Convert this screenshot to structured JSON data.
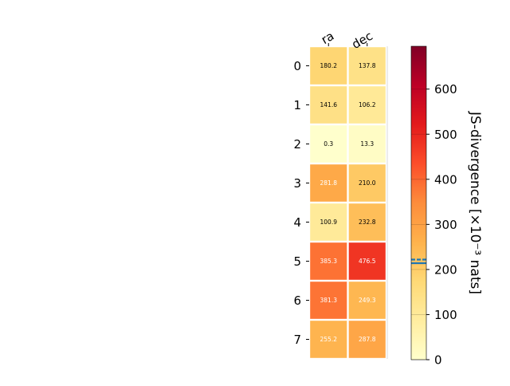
{
  "chart_data": {
    "type": "heatmap",
    "columns": [
      "ra",
      "dec"
    ],
    "rows": [
      "0",
      "1",
      "2",
      "3",
      "4",
      "5",
      "6",
      "7"
    ],
    "values": [
      [
        180.2,
        137.8
      ],
      [
        141.6,
        106.2
      ],
      [
        0.3,
        13.3
      ],
      [
        281.8,
        210.0
      ],
      [
        100.9,
        232.8
      ],
      [
        385.3,
        476.5
      ],
      [
        381.3,
        249.3
      ],
      [
        255.2,
        287.8
      ]
    ],
    "cell_labels": [
      [
        "180.2",
        "137.8"
      ],
      [
        "141.6",
        "106.2"
      ],
      [
        "0.3",
        "13.3"
      ],
      [
        "281.8",
        "210.0"
      ],
      [
        "100.9",
        "232.8"
      ],
      [
        "385.3",
        "476.5"
      ],
      [
        "381.3",
        "249.3"
      ],
      [
        "255.2",
        "287.8"
      ]
    ],
    "colorbar": {
      "label": "JS-divergence [×10⁻³ nats]",
      "range": [
        0,
        695
      ],
      "ticks": [
        0,
        100,
        200,
        300,
        400,
        500,
        600
      ],
      "colormap": "YlOrRd",
      "marker_lines": [
        {
          "value": 214,
          "color": "#1f77b4",
          "style": "solid"
        },
        {
          "value": 222,
          "color": "#1f77b4",
          "style": "dashed"
        }
      ]
    },
    "grid": false,
    "colors": {
      "cell_border": "#ffffff",
      "marker_line": "#1f77b4"
    }
  }
}
